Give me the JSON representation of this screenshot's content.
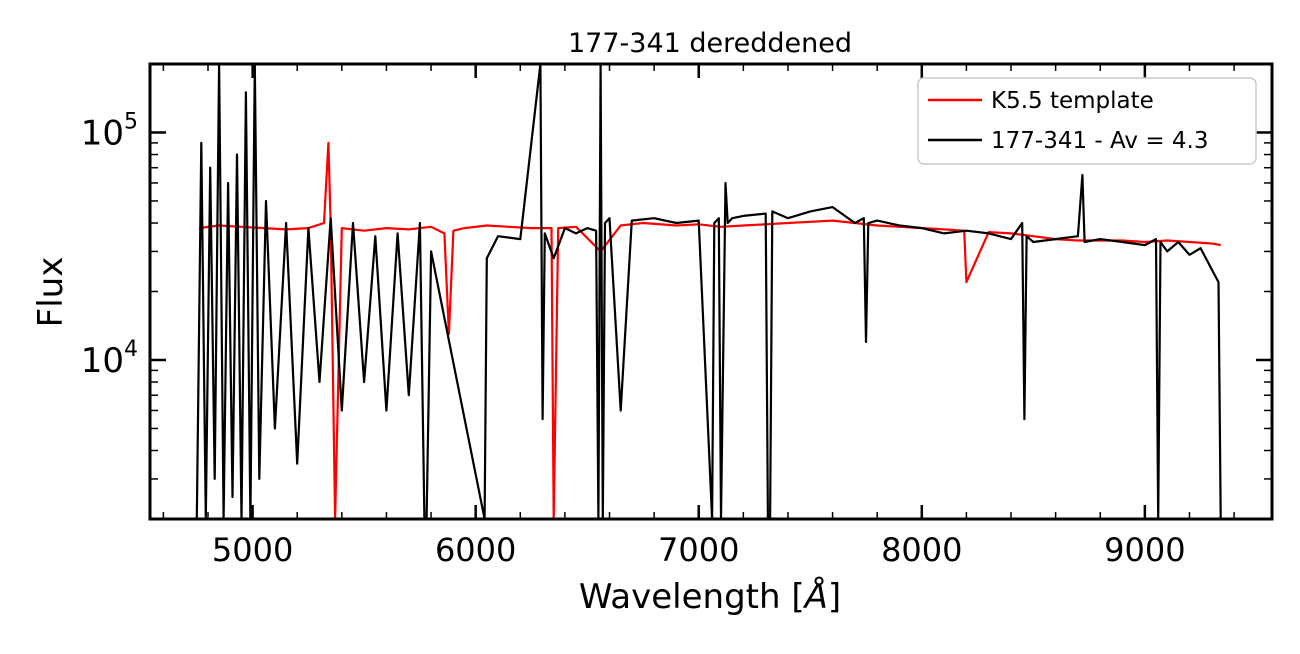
{
  "chart_data": {
    "type": "line",
    "title": "177-341 dereddened",
    "xlabel": "Wavelength [",
    "xlabel_unit": "Å",
    "xlabel_close": "]",
    "ylabel": "Flux",
    "xlim": [
      4540,
      9570
    ],
    "ylim": [
      2000,
      200000
    ],
    "yscale": "log",
    "x_ticks": [
      {
        "value": 5000,
        "label": "5000"
      },
      {
        "value": 6000,
        "label": "6000"
      },
      {
        "value": 7000,
        "label": "7000"
      },
      {
        "value": 8000,
        "label": "8000"
      },
      {
        "value": 9000,
        "label": "9000"
      }
    ],
    "y_ticks": [
      {
        "value": 10000,
        "base": "10",
        "exp": "4"
      },
      {
        "value": 100000,
        "base": "10",
        "exp": "5"
      }
    ],
    "legend_position": "top-right",
    "series": [
      {
        "name": "K5.5 template",
        "color": "#ff0000",
        "x": [
          4760,
          4850,
          4950,
          5050,
          5150,
          5250,
          5320,
          5340,
          5350,
          5370,
          5400,
          5500,
          5600,
          5700,
          5800,
          5860,
          5880,
          5900,
          5950,
          6050,
          6150,
          6250,
          6340,
          6350,
          6370,
          6450,
          6560,
          6650,
          6750,
          6900,
          7000,
          7100,
          7200,
          7300,
          7400,
          7500,
          7600,
          7700,
          7800,
          7900,
          8000,
          8100,
          8190,
          8200,
          8300,
          8400,
          8500,
          8600,
          8700,
          8800,
          8900,
          9000,
          9100,
          9200,
          9300,
          9340
        ],
        "y": [
          38000,
          39000,
          38500,
          38000,
          37500,
          38000,
          40000,
          90000,
          39000,
          2000,
          38000,
          37000,
          38000,
          37500,
          38500,
          36000,
          13000,
          37000,
          38000,
          39000,
          38500,
          38000,
          38000,
          2000,
          38000,
          38500,
          30000,
          39000,
          40000,
          39000,
          39500,
          38500,
          39000,
          39500,
          40000,
          40500,
          41000,
          40000,
          39000,
          38500,
          38000,
          37500,
          37000,
          22000,
          36500,
          36000,
          35000,
          34000,
          33500,
          33500,
          33500,
          33000,
          33500,
          33000,
          32500,
          32000
        ]
      },
      {
        "name": "177-341 - Av = 4.3",
        "color": "#000000",
        "x": [
          4750,
          4770,
          4790,
          4810,
          4830,
          4850,
          4870,
          4890,
          4910,
          4930,
          4950,
          4970,
          4990,
          5010,
          5030,
          5060,
          5100,
          5150,
          5200,
          5250,
          5300,
          5350,
          5400,
          5450,
          5500,
          5550,
          5600,
          5650,
          5700,
          5750,
          5770,
          5780,
          5800,
          6040,
          6050,
          6100,
          6200,
          6290,
          6300,
          6310,
          6350,
          6400,
          6450,
          6500,
          6540,
          6550,
          6560,
          6570,
          6580,
          6600,
          6650,
          6700,
          6800,
          6900,
          7000,
          7060,
          7070,
          7090,
          7100,
          7120,
          7130,
          7150,
          7200,
          7300,
          7310,
          7320,
          7330,
          7400,
          7500,
          7600,
          7700,
          7740,
          7750,
          7760,
          7800,
          7900,
          8000,
          8100,
          8200,
          8300,
          8400,
          8450,
          8460,
          8470,
          8500,
          8600,
          8700,
          8720,
          8730,
          8800,
          8900,
          9000,
          9050,
          9060,
          9070,
          9100,
          9150,
          9200,
          9250,
          9300,
          9330,
          9340
        ],
        "y": [
          2000,
          90000,
          2000,
          70000,
          3000,
          200000,
          2000,
          60000,
          2500,
          80000,
          2000,
          150000,
          2000,
          200000,
          3000,
          50000,
          5000,
          40000,
          3500,
          38000,
          8000,
          42000,
          6000,
          40000,
          8000,
          35000,
          6000,
          36000,
          7000,
          40000,
          2000,
          2000,
          30000,
          2000,
          28000,
          35000,
          34000,
          200000,
          5500,
          36000,
          28000,
          38000,
          36000,
          38000,
          37000,
          2000,
          200000,
          2000,
          40000,
          42000,
          6000,
          41000,
          42000,
          40000,
          41000,
          2000,
          40000,
          42000,
          2000,
          60000,
          40000,
          42000,
          43000,
          44000,
          2000,
          2000,
          45000,
          42000,
          45000,
          47000,
          40000,
          42000,
          12000,
          40000,
          41000,
          39000,
          38000,
          36000,
          37000,
          36000,
          34000,
          40000,
          5500,
          35000,
          33000,
          34000,
          35000,
          65000,
          33000,
          34000,
          33000,
          32000,
          34000,
          2000,
          33000,
          30000,
          33000,
          29000,
          31000,
          25000,
          22000,
          2000
        ]
      }
    ]
  }
}
